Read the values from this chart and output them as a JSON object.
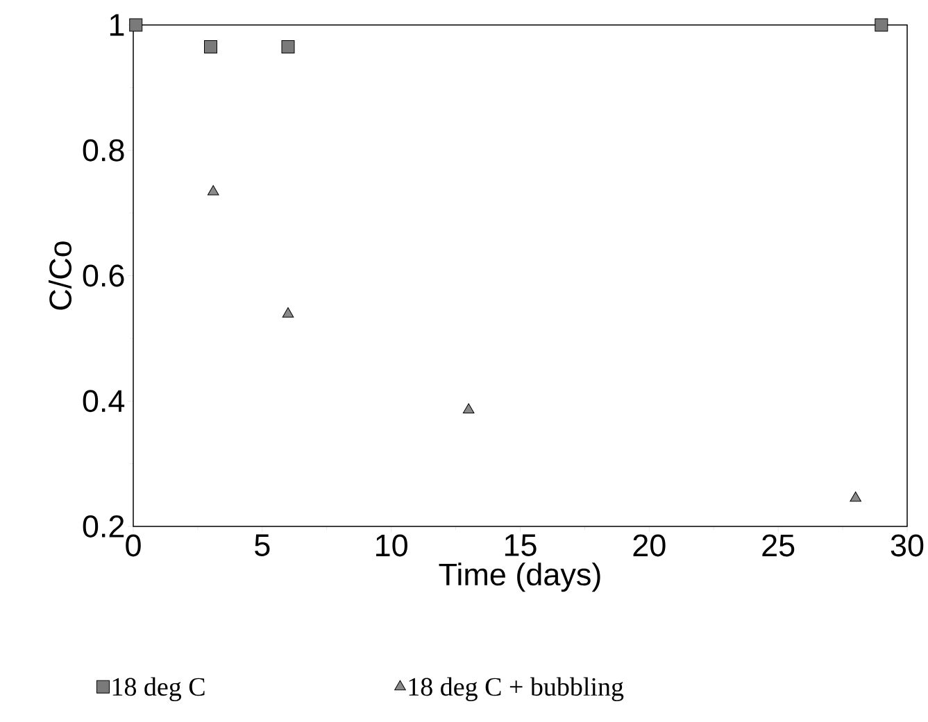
{
  "chart_data": {
    "type": "scatter",
    "xlabel": "Time (days)",
    "ylabel": "C/Co",
    "xlim": [
      0,
      30
    ],
    "ylim": [
      0.2,
      1
    ],
    "xticks": [
      0,
      5,
      10,
      15,
      20,
      25,
      30
    ],
    "yticks": [
      0.2,
      0.4,
      0.6,
      0.8,
      1
    ],
    "legend": "bottom",
    "grid": false,
    "series": [
      {
        "name": "18 deg C",
        "color": "#7a7a7a",
        "marker": "square",
        "x": [
          0.1,
          3,
          6,
          29
        ],
        "values": [
          1.0,
          0.965,
          0.965,
          1.0
        ]
      },
      {
        "name": "18 deg C + bubbling",
        "color": "#8a8a8a",
        "marker": "triangle",
        "x": [
          3.1,
          6,
          13,
          28
        ],
        "values": [
          0.734,
          0.539,
          0.386,
          0.245
        ]
      }
    ]
  }
}
